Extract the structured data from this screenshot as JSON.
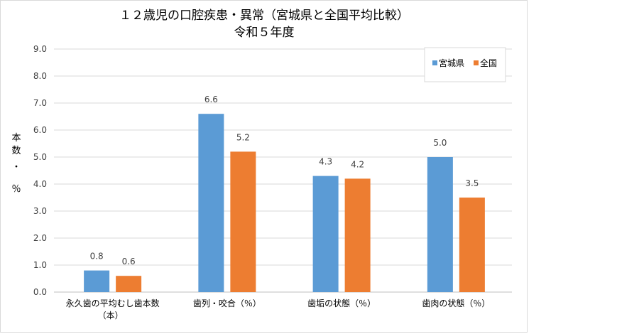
{
  "chart_data": {
    "type": "bar",
    "title_lines": [
      "１２歳児の口腔疾患・異常（宮城県と全国平均比較）",
      "令和５年度"
    ],
    "ylabel_chars": [
      "本",
      "数",
      "・",
      "％"
    ],
    "categories": [
      [
        "永久歯の平均むし歯本数",
        "（本）"
      ],
      [
        "歯列・咬合（％）"
      ],
      [
        "歯垢の状態（％）"
      ],
      [
        "歯肉の状態（％）"
      ]
    ],
    "series": [
      {
        "name": "宮城県",
        "color": "#5b9bd5",
        "values": [
          0.8,
          6.6,
          4.3,
          5.0
        ],
        "labels": [
          "0.8",
          "6.6",
          "4.3",
          "5.0"
        ]
      },
      {
        "name": "全国",
        "color": "#ed7d31",
        "values": [
          0.6,
          5.2,
          4.2,
          3.5
        ],
        "labels": [
          "0.6",
          "5.2",
          "4.2",
          "3.5"
        ]
      }
    ],
    "ylim": [
      0,
      9
    ],
    "yticks": [
      "0.0",
      "1.0",
      "2.0",
      "3.0",
      "4.0",
      "5.0",
      "6.0",
      "7.0",
      "8.0",
      "9.0"
    ],
    "grid": true,
    "legend_position": "top-right",
    "gridline_color": "#d9d9d9",
    "axis_color": "#bfbfbf"
  }
}
